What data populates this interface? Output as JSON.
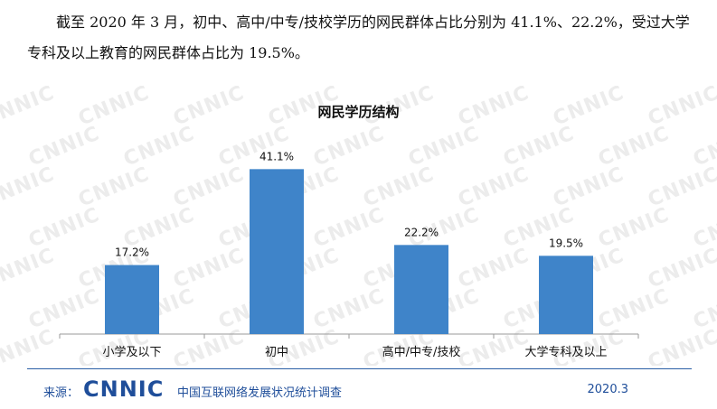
{
  "intro_text": "截至 2020 年 3 月，初中、高中/中专/技校学历的网民群体占比分别为 41.1%、22.2%，受过大学专科及以上教育的网民群体占比为 19.5%。",
  "watermark_text": "CNNIC",
  "chart_data": {
    "type": "bar",
    "title": "网民学历结构",
    "categories": [
      "小学及以下",
      "初中",
      "高中/中专/技校",
      "大学专科及以上"
    ],
    "values": [
      17.2,
      41.1,
      22.2,
      19.5
    ],
    "value_labels": [
      "17.2%",
      "41.1%",
      "22.2%",
      "19.5%"
    ],
    "unit": "%",
    "xlabel": "",
    "ylabel": "",
    "ylim": [
      0,
      45
    ],
    "grid": false,
    "bar_color": "#3f84c9"
  },
  "footer": {
    "source_label": "来源：",
    "logo_text": "CNNIC",
    "org_text": "中国互联网络发展状况统计调查",
    "date_text": "2020.3"
  }
}
